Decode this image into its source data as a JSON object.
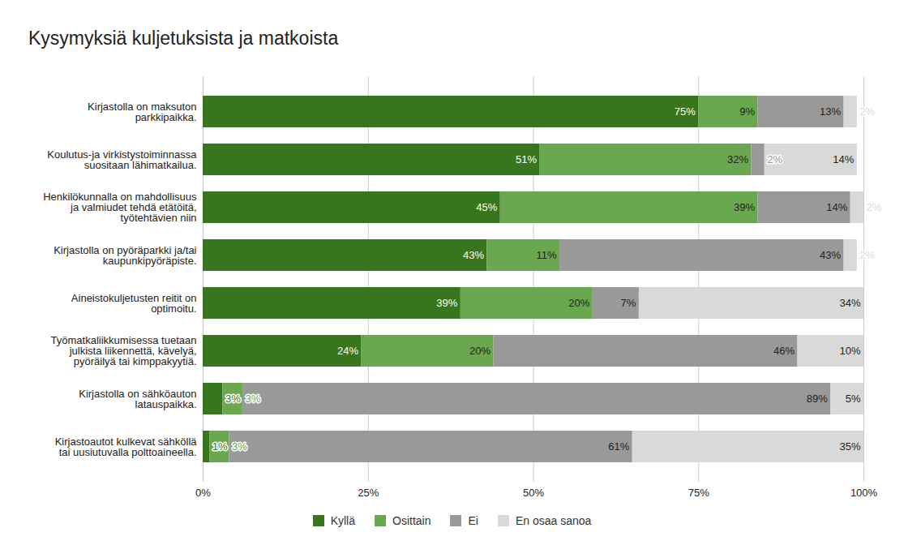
{
  "chart_data": {
    "type": "bar",
    "title": "Kysymyksiä kuljetuksista ja matkoista",
    "orientation": "horizontal",
    "stacked": true,
    "data_labels": true,
    "grid": true,
    "legend": "bottom",
    "categories": [
      "Kirjastolla on maksuton parkkipaikka.",
      "Koulutus-ja virkistystoiminnassa suositaan lähimatkailua.",
      "Henkilökunnalla on mahdollisuus ja valmiudet tehdä etätöitä, työtehtävien niin",
      "Kirjastolla on pyöräparkki ja/tai kaupunkipyöräpiste.",
      "Aineistokuljetusten reitit on optimoitu.",
      "Työmatkaliikkumisessa tuetaan julkista liikennettä, kävelyä, pyöräilyä tai kimppakyytiä.",
      "Kirjastolla on sähköauton latauspaikka.",
      "Kirjastoautot kulkevat sähköllä tai uusiutuvalla polttoaineella."
    ],
    "series": [
      {
        "name": "Kyllä",
        "color": "#38761d",
        "values": [
          75,
          51,
          45,
          43,
          39,
          24,
          3,
          1
        ],
        "value_labels": [
          "75%",
          "51%",
          "45%",
          "43%",
          "39%",
          "24%",
          "3%",
          "1%"
        ]
      },
      {
        "name": "Osittain",
        "color": "#6aa84f",
        "values": [
          9,
          32,
          39,
          11,
          20,
          20,
          3,
          3
        ],
        "value_labels": [
          "9%",
          "32%",
          "39%",
          "11%",
          "20%",
          "20%",
          "3%",
          "3%"
        ]
      },
      {
        "name": "Ei",
        "color": "#999999",
        "values": [
          13,
          2,
          14,
          43,
          7,
          46,
          89,
          61
        ],
        "value_labels": [
          "13%",
          "2%",
          "14%",
          "43%",
          "7%",
          "46%",
          "89%",
          "61%"
        ]
      },
      {
        "name": "En osaa sanoa",
        "color": "#d9d9d9",
        "values": [
          2,
          14,
          2,
          2,
          34,
          10,
          5,
          35
        ],
        "value_labels": [
          "2%",
          "14%",
          "2%",
          "2%",
          "34%",
          "10%",
          "5%",
          "35%"
        ]
      }
    ],
    "xlim": [
      0,
      100
    ],
    "xticks": [
      {
        "value": 0,
        "label": "0%"
      },
      {
        "value": 25,
        "label": "25%"
      },
      {
        "value": 50,
        "label": "50%"
      },
      {
        "value": 75,
        "label": "75%"
      },
      {
        "value": 100,
        "label": "100%"
      }
    ]
  }
}
